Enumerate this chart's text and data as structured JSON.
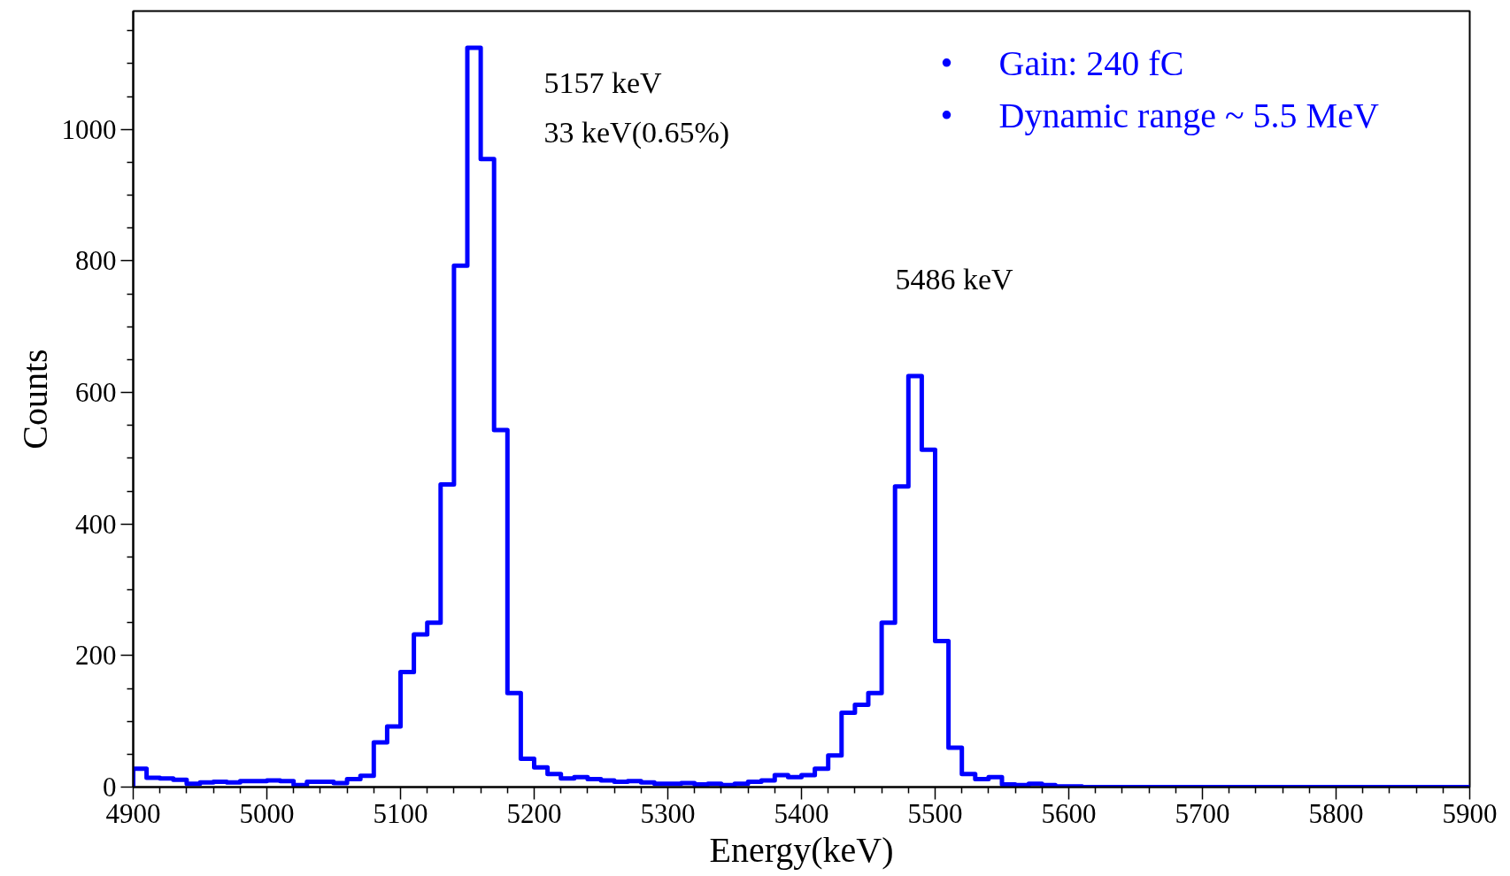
{
  "chart_data": {
    "type": "histogram",
    "xlabel": "Energy(keV)",
    "ylabel": "Counts",
    "color": "#0000ff",
    "bins": [
      4900,
      4910,
      4920,
      4930,
      4940,
      4950,
      4960,
      4970,
      4980,
      4990,
      5000,
      5010,
      5020,
      5030,
      5040,
      5050,
      5060,
      5070,
      5080,
      5090,
      5100,
      5110,
      5120,
      5130,
      5140,
      5150,
      5160,
      5170,
      5180,
      5190,
      5200,
      5210,
      5220,
      5230,
      5240,
      5250,
      5260,
      5270,
      5280,
      5290,
      5300,
      5310,
      5320,
      5330,
      5340,
      5350,
      5360,
      5370,
      5380,
      5390,
      5400,
      5410,
      5420,
      5430,
      5440,
      5450,
      5460,
      5470,
      5480,
      5490,
      5500,
      5510,
      5520,
      5530,
      5540,
      5550,
      5560,
      5570,
      5580,
      5590,
      5600,
      5610,
      5620,
      5630,
      5640,
      5650,
      5660,
      5670,
      5680,
      5690,
      5700,
      5710,
      5720,
      5730,
      5740,
      5750,
      5760,
      5770,
      5780,
      5790,
      5800,
      5810,
      5820,
      5830,
      5840,
      5850,
      5860,
      5870,
      5880,
      5890,
      5900
    ],
    "values": [
      28,
      14,
      13,
      11,
      5,
      7,
      8,
      7,
      9,
      9,
      10,
      9,
      3,
      8,
      8,
      6,
      12,
      17,
      68,
      92,
      175,
      232,
      250,
      460,
      793,
      1124,
      955,
      543,
      143,
      43,
      30,
      20,
      13,
      15,
      12,
      10,
      8,
      9,
      7,
      5,
      5,
      6,
      4,
      5,
      3,
      5,
      8,
      10,
      18,
      15,
      18,
      28,
      48,
      113,
      125,
      143,
      250,
      457,
      625,
      513,
      222,
      60,
      20,
      12,
      15,
      4,
      3,
      5,
      3,
      1,
      1,
      0,
      0,
      0,
      0,
      0,
      0,
      0,
      0,
      0,
      0,
      0,
      0,
      0,
      0,
      0,
      0,
      0,
      0,
      0,
      0,
      0,
      0,
      0,
      0,
      0,
      0,
      0,
      0,
      0
    ],
    "xlim": [
      4900,
      5900
    ],
    "ylim": [
      0,
      1180
    ],
    "xticks": [
      4900,
      {
        "value": 4920,
        "label": null
      },
      {
        "value": 4940,
        "label": null
      },
      {
        "value": 4960,
        "label": null
      },
      {
        "value": 4980,
        "label": null
      },
      5000,
      {
        "value": 5020,
        "label": null
      },
      {
        "value": 5040,
        "label": null
      },
      {
        "value": 5060,
        "label": null
      },
      {
        "value": 5080,
        "label": null
      },
      5100,
      {
        "value": 5120,
        "label": null
      },
      {
        "value": 5140,
        "label": null
      },
      {
        "value": 5160,
        "label": null
      },
      {
        "value": 5180,
        "label": null
      },
      5200,
      {
        "value": 5220,
        "label": null
      },
      {
        "value": 5240,
        "label": null
      },
      {
        "value": 5260,
        "label": null
      },
      {
        "value": 5280,
        "label": null
      },
      5300,
      {
        "value": 5320,
        "label": null
      },
      {
        "value": 5340,
        "label": null
      },
      {
        "value": 5360,
        "label": null
      },
      {
        "value": 5380,
        "label": null
      },
      5400,
      {
        "value": 5420,
        "label": null
      },
      {
        "value": 5440,
        "label": null
      },
      {
        "value": 5460,
        "label": null
      },
      {
        "value": 5480,
        "label": null
      },
      5500,
      {
        "value": 5520,
        "label": null
      },
      {
        "value": 5540,
        "label": null
      },
      {
        "value": 5560,
        "label": null
      },
      {
        "value": 5580,
        "label": null
      },
      5600,
      {
        "value": 5620,
        "label": null
      },
      {
        "value": 5640,
        "label": null
      },
      {
        "value": 5660,
        "label": null
      },
      {
        "value": 5680,
        "label": null
      },
      5700,
      {
        "value": 5720,
        "label": null
      },
      {
        "value": 5740,
        "label": null
      },
      {
        "value": 5760,
        "label": null
      },
      {
        "value": 5780,
        "label": null
      },
      5800,
      {
        "value": 5820,
        "label": null
      },
      {
        "value": 5840,
        "label": null
      },
      {
        "value": 5860,
        "label": null
      },
      {
        "value": 5880,
        "label": null
      },
      5900
    ],
    "yticks": [
      0,
      {
        "value": 50,
        "label": null
      },
      {
        "value": 100,
        "label": null
      },
      {
        "value": 150,
        "label": null
      },
      200,
      {
        "value": 250,
        "label": null
      },
      {
        "value": 300,
        "label": null
      },
      {
        "value": 350,
        "label": null
      },
      400,
      {
        "value": 450,
        "label": null
      },
      {
        "value": 500,
        "label": null
      },
      {
        "value": 550,
        "label": null
      },
      600,
      {
        "value": 650,
        "label": null
      },
      {
        "value": 700,
        "label": null
      },
      {
        "value": 750,
        "label": null
      },
      800,
      {
        "value": 850,
        "label": null
      },
      {
        "value": 900,
        "label": null
      },
      {
        "value": 950,
        "label": null
      },
      1000,
      {
        "value": 1050,
        "label": null
      },
      {
        "value": 1100,
        "label": null
      },
      {
        "value": 1150,
        "label": null
      }
    ],
    "annotations": [
      "5157 keV",
      "33 keV(0.65%)",
      "5486 keV",
      "Gain: 240 fC",
      "Dynamic range ~ 5.5 MeV",
      "•",
      "•"
    ],
    "grid": false
  }
}
